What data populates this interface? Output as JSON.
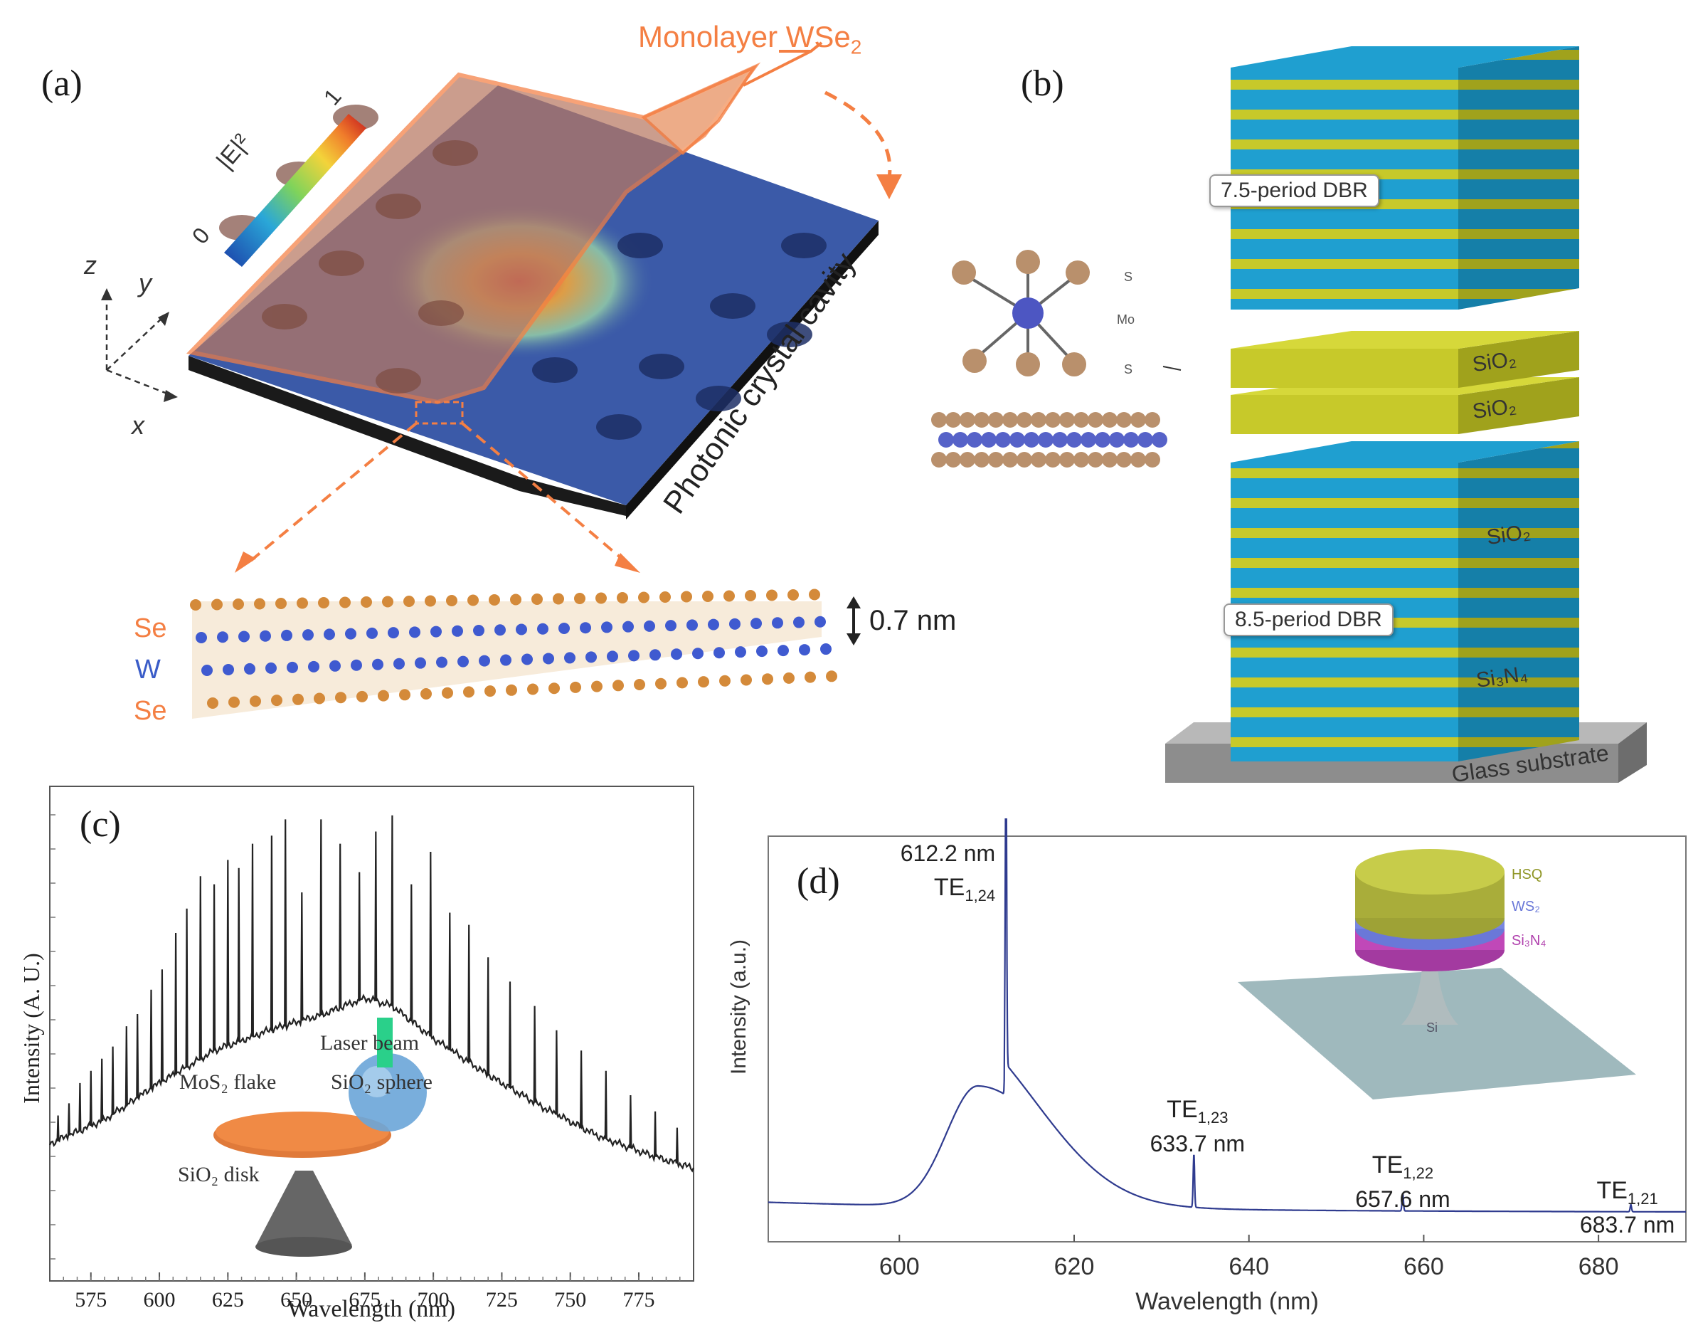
{
  "panel_a": {
    "label": "(a)",
    "monolayer_label": "Monolayer WSe",
    "monolayer_sub": "2",
    "colorbar_label": "|E|²",
    "colorbar_min": "0",
    "colorbar_max": "1",
    "axis_z": "z",
    "axis_y": "y",
    "axis_x": "x",
    "cavity_label": "Photonic crystal cavity",
    "atom_se_top": "Se",
    "atom_w": "W",
    "atom_se_bottom": "Se",
    "thickness": "0.7 nm"
  },
  "panel_b": {
    "label": "(b)",
    "dbr_top": "7.5-period DBR",
    "dbr_bottom": "8.5-period DBR",
    "sio2_upper": "SiO₂",
    "sio2_lower": "SiO₂",
    "sio2_stack": "SiO₂",
    "si3n4_stack": "Si₃N₄",
    "substrate": "Glass substrate",
    "atom_s_top": "S",
    "atom_mo": "Mo",
    "atom_s_bottom": "S"
  },
  "panel_c": {
    "label": "(c)",
    "inset_laser": "Laser beam",
    "inset_sphere": "SiO₂ sphere",
    "inset_flake": "MoS₂ flake",
    "inset_disk": "SiO₂ disk",
    "chart_ref": "chart_data.0"
  },
  "panel_d": {
    "label": "(d)",
    "inset_hsq": "HSQ",
    "inset_ws2": "WS₂",
    "inset_si3n4": "Si₃N₄",
    "inset_si": "Si",
    "chart_ref": "chart_data.1"
  },
  "chart_data": [
    {
      "type": "line",
      "xlabel": "Wavelength (nm)",
      "ylabel": "Intensity (A. U.)",
      "xlim": [
        560,
        795
      ],
      "ticks": [
        "575",
        "600",
        "625",
        "650",
        "675",
        "700",
        "725",
        "750",
        "775"
      ],
      "tick_values": [
        575,
        600,
        625,
        650,
        675,
        700,
        725,
        750,
        775
      ],
      "envelope": [
        [
          560,
          0.18
        ],
        [
          580,
          0.24
        ],
        [
          600,
          0.33
        ],
        [
          620,
          0.41
        ],
        [
          640,
          0.46
        ],
        [
          660,
          0.5
        ],
        [
          675,
          0.54
        ],
        [
          685,
          0.52
        ],
        [
          700,
          0.44
        ],
        [
          720,
          0.35
        ],
        [
          740,
          0.27
        ],
        [
          760,
          0.2
        ],
        [
          780,
          0.15
        ],
        [
          795,
          0.12
        ]
      ],
      "peaks": [
        [
          563,
          0.25
        ],
        [
          567,
          0.28
        ],
        [
          571,
          0.33
        ],
        [
          575,
          0.36
        ],
        [
          579,
          0.39
        ],
        [
          583,
          0.42
        ],
        [
          588,
          0.47
        ],
        [
          592,
          0.5
        ],
        [
          597,
          0.56
        ],
        [
          601,
          0.61
        ],
        [
          606,
          0.7
        ],
        [
          610,
          0.76
        ],
        [
          615,
          0.84
        ],
        [
          620,
          0.82
        ],
        [
          625,
          0.88
        ],
        [
          629,
          0.86
        ],
        [
          634,
          0.92
        ],
        [
          641,
          0.94
        ],
        [
          646,
          0.98
        ],
        [
          652,
          0.8
        ],
        [
          659,
          0.98
        ],
        [
          666,
          0.92
        ],
        [
          673,
          0.85
        ],
        [
          679,
          0.95
        ],
        [
          685,
          0.99
        ],
        [
          692,
          0.82
        ],
        [
          699,
          0.9
        ],
        [
          706,
          0.75
        ],
        [
          713,
          0.72
        ],
        [
          720,
          0.64
        ],
        [
          728,
          0.58
        ],
        [
          737,
          0.52
        ],
        [
          745,
          0.46
        ],
        [
          754,
          0.41
        ],
        [
          763,
          0.36
        ],
        [
          772,
          0.3
        ],
        [
          781,
          0.26
        ],
        [
          789,
          0.22
        ]
      ]
    },
    {
      "type": "line",
      "xlabel": "Wavelength (nm)",
      "ylabel": "Intensity (a.u.)",
      "xlim": [
        585,
        690
      ],
      "ticks": [
        "600",
        "620",
        "640",
        "660",
        "680"
      ],
      "tick_values": [
        600,
        620,
        640,
        660,
        680
      ],
      "broad_peak": {
        "center": 609,
        "sigma": 3.6,
        "amplitude": 0.34
      },
      "annotations": [
        {
          "x": 612.2,
          "height": 0.88,
          "line1": "612.2 nm",
          "mode": "TE",
          "sub": "1,24"
        },
        {
          "x": 633.7,
          "height": 0.15,
          "line1": "633.7 nm",
          "mode": "TE",
          "sub": "1,23"
        },
        {
          "x": 657.6,
          "height": 0.05,
          "line1": "657.6 nm",
          "mode": "TE",
          "sub": "1,22"
        },
        {
          "x": 683.7,
          "height": 0.02,
          "line1": "683.7 nm",
          "mode": "TE",
          "sub": "1,21"
        }
      ]
    }
  ]
}
